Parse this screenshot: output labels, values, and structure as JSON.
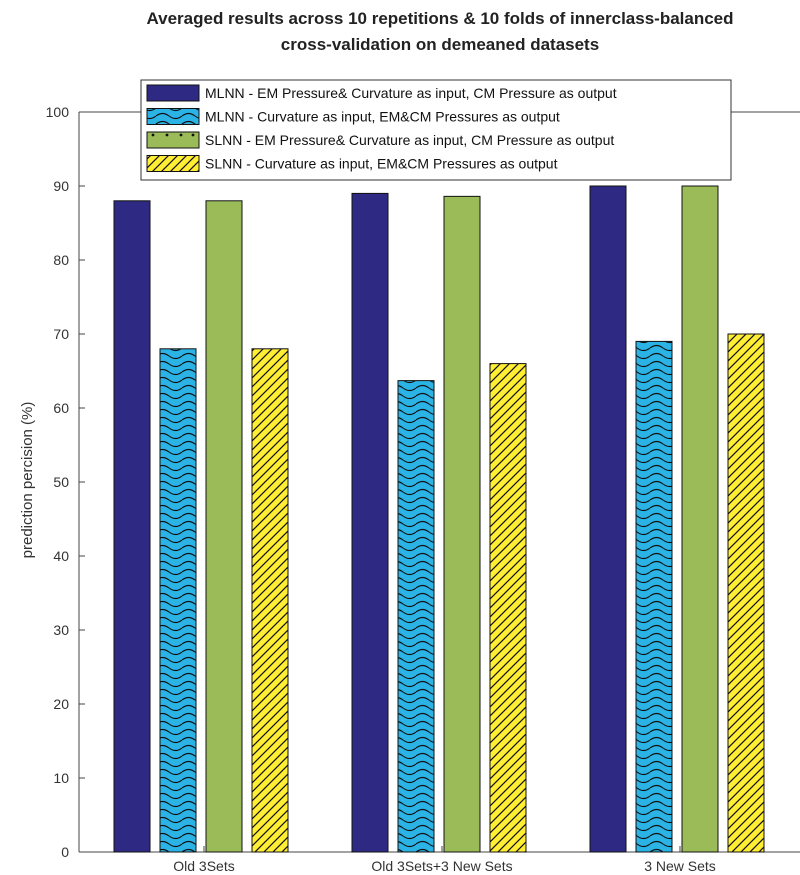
{
  "chart_data": {
    "type": "bar",
    "title": "Averaged results across 10 repetitions & 10 folds of innerclass-balanced",
    "subtitle": "cross-validation on demeaned datasets",
    "xlabel": "",
    "ylabel": "prediction percision (%)",
    "ylim": [
      0,
      100
    ],
    "yticks": [
      0,
      10,
      20,
      30,
      40,
      50,
      60,
      70,
      80,
      90,
      100
    ],
    "grid": false,
    "legend_position": "top",
    "categories": [
      "Old 3Sets",
      "Old 3Sets+3 New Sets",
      "3 New Sets"
    ],
    "series": [
      {
        "name": "MLNN - EM Pressure& Curvature as input, CM Pressure as output",
        "values": [
          88,
          89,
          90
        ],
        "color": "#2e2a84",
        "pattern": "solid"
      },
      {
        "name": "MLNN - Curvature as input, EM&CM Pressures as output",
        "values": [
          68,
          63.7,
          69
        ],
        "color": "#2bb3e6",
        "pattern": "waves"
      },
      {
        "name": "SLNN - EM Pressure& Curvature as input, CM Pressure as output",
        "values": [
          88,
          88.6,
          90
        ],
        "color": "#9bbb59",
        "pattern": "solid"
      },
      {
        "name": "SLNN - Curvature as input, EM&CM Pressures as output",
        "values": [
          68,
          66,
          70
        ],
        "color": "#ffee33",
        "pattern": "diagonal"
      }
    ]
  }
}
